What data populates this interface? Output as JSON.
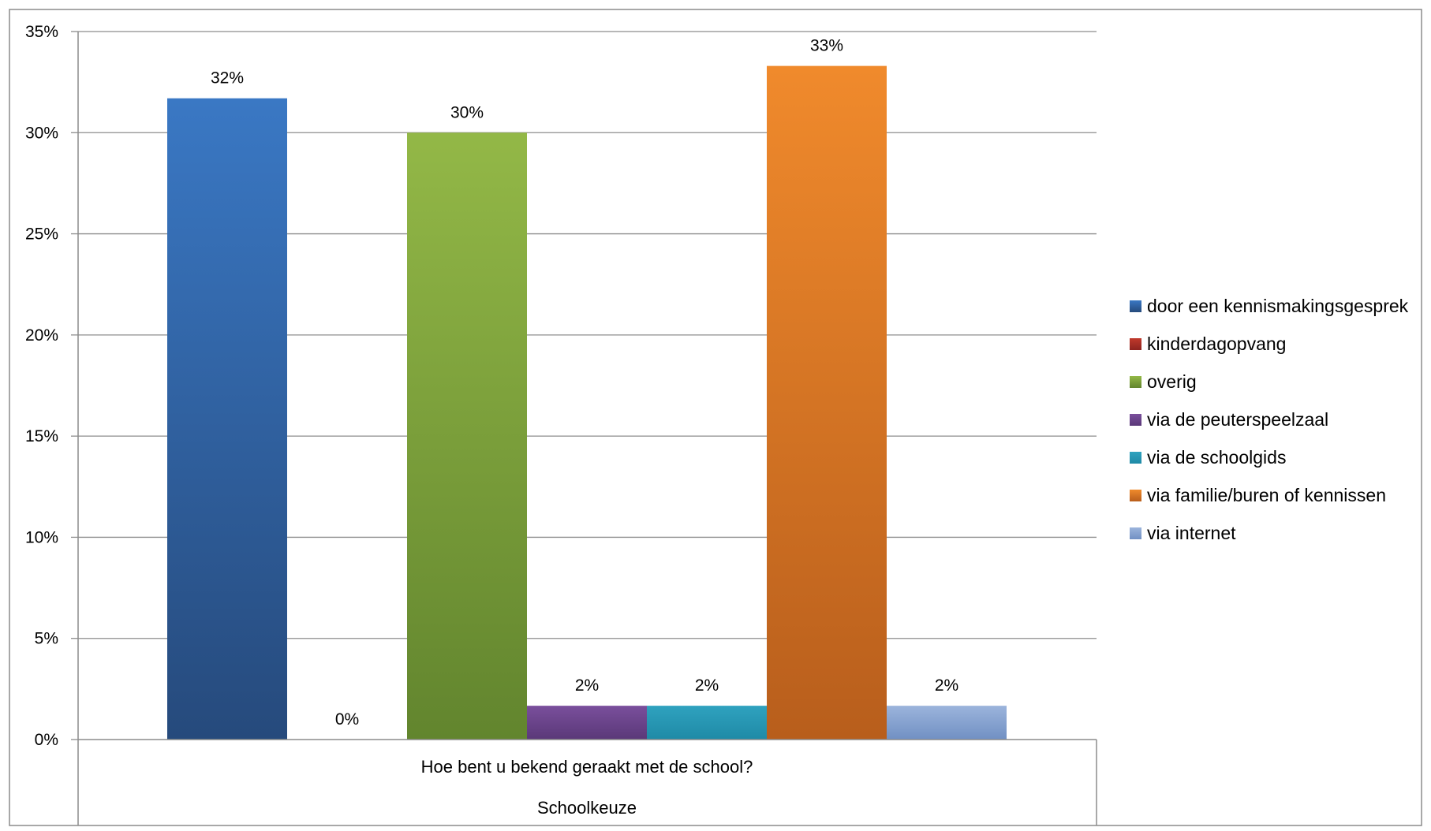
{
  "chart_data": {
    "type": "bar",
    "group_label": "Hoe bent u bekend geraakt met de school?",
    "xlabel": "Schoolkeuze",
    "ylabel": "",
    "ylim": [
      0,
      0.35
    ],
    "y_ticks": [
      {
        "value": 0.0,
        "label": "0%"
      },
      {
        "value": 0.05,
        "label": "5%"
      },
      {
        "value": 0.1,
        "label": "10%"
      },
      {
        "value": 0.15,
        "label": "15%"
      },
      {
        "value": 0.2,
        "label": "20%"
      },
      {
        "value": 0.25,
        "label": "25%"
      },
      {
        "value": 0.3,
        "label": "30%"
      },
      {
        "value": 0.35,
        "label": "35%"
      }
    ],
    "grid": true,
    "legend_position": "right",
    "series": [
      {
        "name": "door een kennismakingsgesprek",
        "value": 0.317,
        "label": "32%",
        "color_top": "#3a78c4",
        "color_bottom": "#264a7c"
      },
      {
        "name": "kinderdagopvang",
        "value": 0.0,
        "label": "0%",
        "color_top": "#c0392b",
        "color_bottom": "#8e2420"
      },
      {
        "name": "overig",
        "value": 0.3,
        "label": "30%",
        "color_top": "#93b847",
        "color_bottom": "#62852e"
      },
      {
        "name": "via de peuterspeelzaal",
        "value": 0.0167,
        "label": "2%",
        "color_top": "#7a4f9c",
        "color_bottom": "#5a3878"
      },
      {
        "name": "via de schoolgids",
        "value": 0.0167,
        "label": "2%",
        "color_top": "#2fa2bf",
        "color_bottom": "#1f8aa6"
      },
      {
        "name": "via familie/buren of kennissen",
        "value": 0.333,
        "label": "33%",
        "color_top": "#f08a2c",
        "color_bottom": "#b85e1c"
      },
      {
        "name": "via internet",
        "value": 0.0167,
        "label": "2%",
        "color_top": "#9bb4dc",
        "color_bottom": "#7190c3"
      }
    ]
  }
}
